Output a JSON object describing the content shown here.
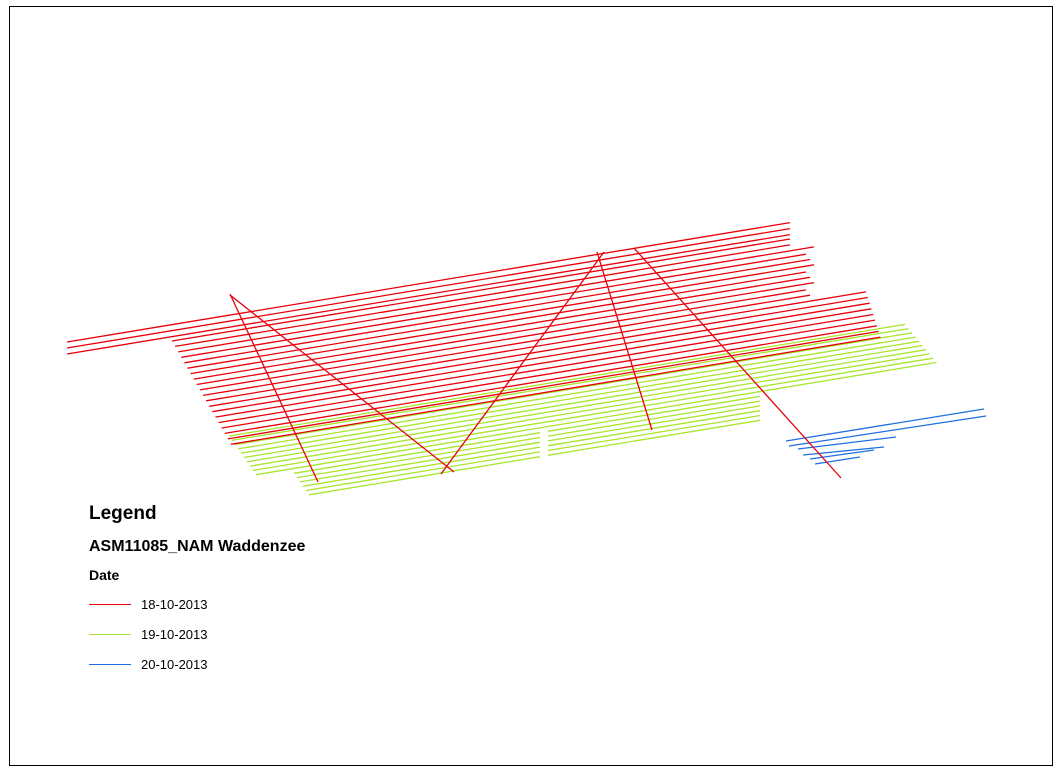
{
  "legend": {
    "title": "Legend",
    "layer_name": "ASM11085_NAM Waddenzee",
    "field_name": "Date",
    "classes": [
      {
        "label": "18-10-2013",
        "color": "#e8000b"
      },
      {
        "label": "19-10-2013",
        "color": "#a6e62e"
      },
      {
        "label": "20-10-2013",
        "color": "#1f6fe0"
      }
    ]
  }
}
